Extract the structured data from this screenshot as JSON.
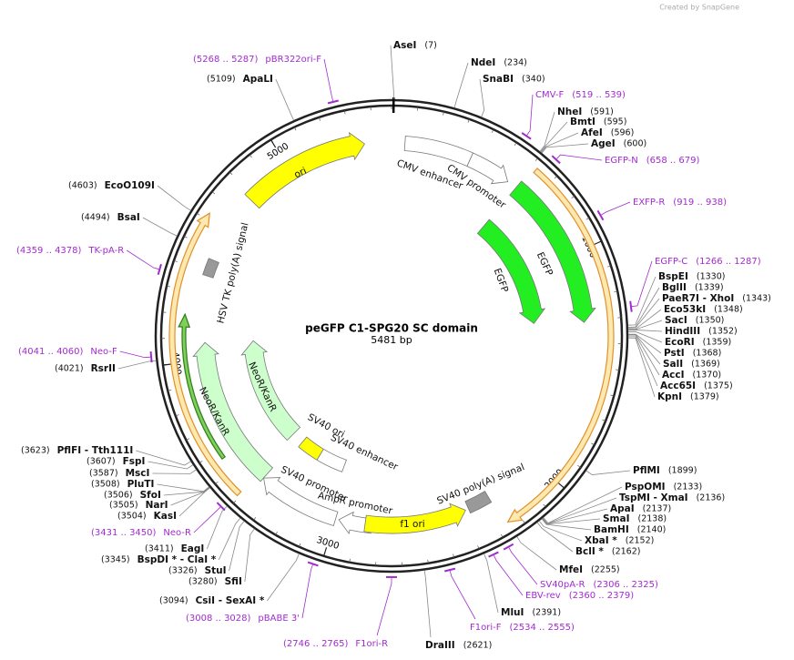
{
  "watermark": "Created by SnapGene",
  "map": {
    "title": "peGFP C1-SPG20 SC domain",
    "length": "5481 bp"
  },
  "sites": [
    {
      "name": "AseI",
      "site": "(7)"
    },
    {
      "name": "NdeI",
      "site": "(234)"
    },
    {
      "name": "SnaBI",
      "site": "(340)"
    },
    {
      "name": "NheI",
      "site": "(591)"
    },
    {
      "name": "BmtI",
      "site": "(595)"
    },
    {
      "name": "AfeI",
      "site": "(596)"
    },
    {
      "name": "AgeI",
      "site": "(600)"
    },
    {
      "name": "BspEI",
      "site": "(1330)"
    },
    {
      "name": "BglII",
      "site": "(1339)"
    },
    {
      "name": "PaeR7I  - XhoI",
      "site": "(1343)"
    },
    {
      "name": "Eco53kI",
      "site": "(1348)"
    },
    {
      "name": "SacI",
      "site": "(1350)"
    },
    {
      "name": "HindIII",
      "site": "(1352)"
    },
    {
      "name": "EcoRI",
      "site": "(1359)"
    },
    {
      "name": "PstI",
      "site": "(1368)"
    },
    {
      "name": "SalI",
      "site": "(1369)"
    },
    {
      "name": "AccI",
      "site": "(1370)"
    },
    {
      "name": "Acc65I",
      "site": "(1375)"
    },
    {
      "name": "KpnI",
      "site": "(1379)"
    },
    {
      "name": "PflMI",
      "site": "(1899)"
    },
    {
      "name": "PspOMI",
      "site": "(2133)"
    },
    {
      "name": "TspMI  - XmaI",
      "site": "(2136)"
    },
    {
      "name": "ApaI",
      "site": "(2137)"
    },
    {
      "name": "SmaI",
      "site": "(2138)"
    },
    {
      "name": "BamHI",
      "site": "(2140)"
    },
    {
      "name": "XbaI *",
      "site": "(2152)"
    },
    {
      "name": "BclI *",
      "site": "(2162)"
    },
    {
      "name": "MfeI",
      "site": "(2255)"
    },
    {
      "name": "MluI",
      "site": "(2391)"
    },
    {
      "name": "DraIII",
      "site": "(2621)"
    },
    {
      "name": "ApaLI",
      "site": "(5109)"
    },
    {
      "name": "EcoO109I",
      "site": "(4603)"
    },
    {
      "name": "BsaI",
      "site": "(4494)"
    },
    {
      "name": "RsrII",
      "site": "(4021)"
    },
    {
      "name": "PflFI  - Tth111I",
      "site": "(3623)"
    },
    {
      "name": "FspI",
      "site": "(3607)"
    },
    {
      "name": "MscI",
      "site": "(3587)"
    },
    {
      "name": "PluTI",
      "site": "(3508)"
    },
    {
      "name": "SfoI",
      "site": "(3506)"
    },
    {
      "name": "NarI",
      "site": "(3505)"
    },
    {
      "name": "KasI",
      "site": "(3504)"
    },
    {
      "name": "EagI",
      "site": "(3411)"
    },
    {
      "name": "BspDI *  - ClaI *",
      "site": "(3345)"
    },
    {
      "name": "StuI",
      "site": "(3326)"
    },
    {
      "name": "SfiI",
      "site": "(3280)"
    },
    {
      "name": "CsiI  - SexAI *",
      "site": "(3094)"
    }
  ],
  "primers": [
    {
      "name": "pBR322ori-F",
      "site": "(5268 .. 5287)"
    },
    {
      "name": "CMV-F",
      "site": "(519 .. 539)"
    },
    {
      "name": "EGFP-N",
      "site": "(658 .. 679)"
    },
    {
      "name": "EXFP-R",
      "site": "(919 .. 938)"
    },
    {
      "name": "EGFP-C",
      "site": "(1266 .. 1287)"
    },
    {
      "name": "TK-pA-R",
      "site": "(4359 .. 4378)"
    },
    {
      "name": "Neo-F",
      "site": "(4041 .. 4060)"
    },
    {
      "name": "Neo-R",
      "site": "(3431 .. 3450)"
    },
    {
      "name": "pBABE 3'",
      "site": "(3008 .. 3028)"
    },
    {
      "name": "F1ori-R",
      "site": "(2746 .. 2765)"
    },
    {
      "name": "F1ori-F",
      "site": "(2534 .. 2555)"
    },
    {
      "name": "EBV-rev",
      "site": "(2360 .. 2379)"
    },
    {
      "name": "SV40pA-R",
      "site": "(2306 .. 2325)"
    }
  ],
  "features": [
    "ori",
    "CMV enhancer",
    "CMV promoter",
    "EGFP",
    "EGFP",
    "HSV TK poly(A) signal",
    "NeoR/KanR",
    "NeoR/KanR",
    "SV40 ori",
    "SV40 enhancer",
    "SV40 promoter",
    "AmpR promoter",
    "f1 ori",
    "SV40 poly(A) signal"
  ],
  "ruler": [
    "1000",
    "2000",
    "3000",
    "4000",
    "5000"
  ]
}
